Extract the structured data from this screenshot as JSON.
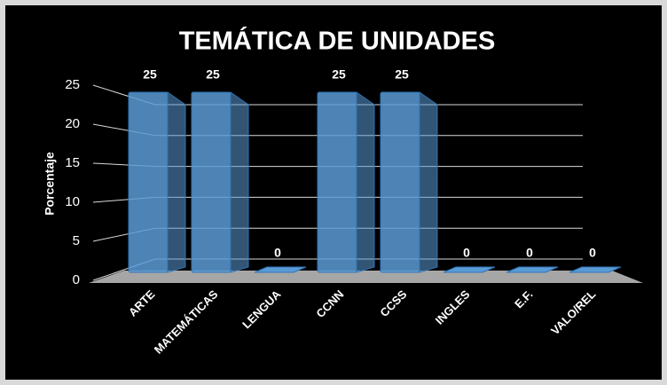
{
  "chart_data": {
    "type": "bar",
    "title": "TEMÁTICA DE UNIDADES",
    "y_label": "Porcentaje",
    "categories": [
      "ARTE",
      "MATEMÁTICAS",
      "LENGUA",
      "CCNN",
      "CCSS",
      "INGLES",
      "E.F.",
      "VALO/REL"
    ],
    "values": [
      25,
      25,
      0,
      25,
      25,
      0,
      0,
      0
    ],
    "color": "#5b9bd5",
    "ylim": [
      0,
      25
    ],
    "yticks": [
      0,
      5,
      10,
      15,
      20,
      25
    ],
    "grid": true
  }
}
